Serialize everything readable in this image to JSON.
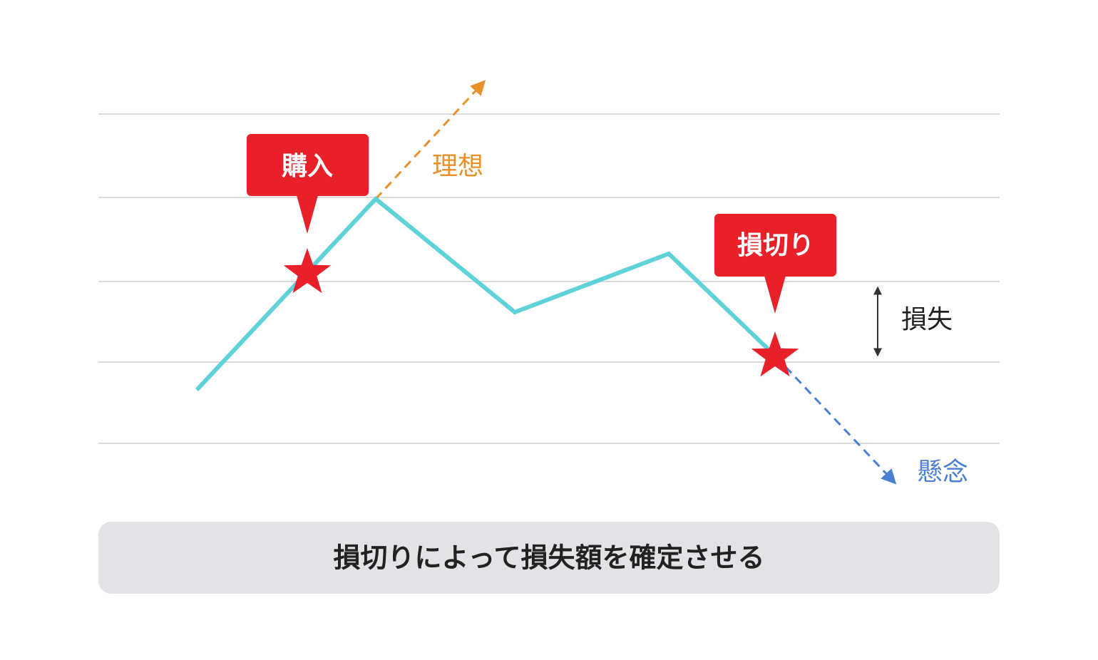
{
  "labels": {
    "buy": "購入",
    "ideal": "理想",
    "stop_loss": "損切り",
    "loss": "損失",
    "concern": "懸念"
  },
  "caption": "損切りによって損失額を確定させる"
}
